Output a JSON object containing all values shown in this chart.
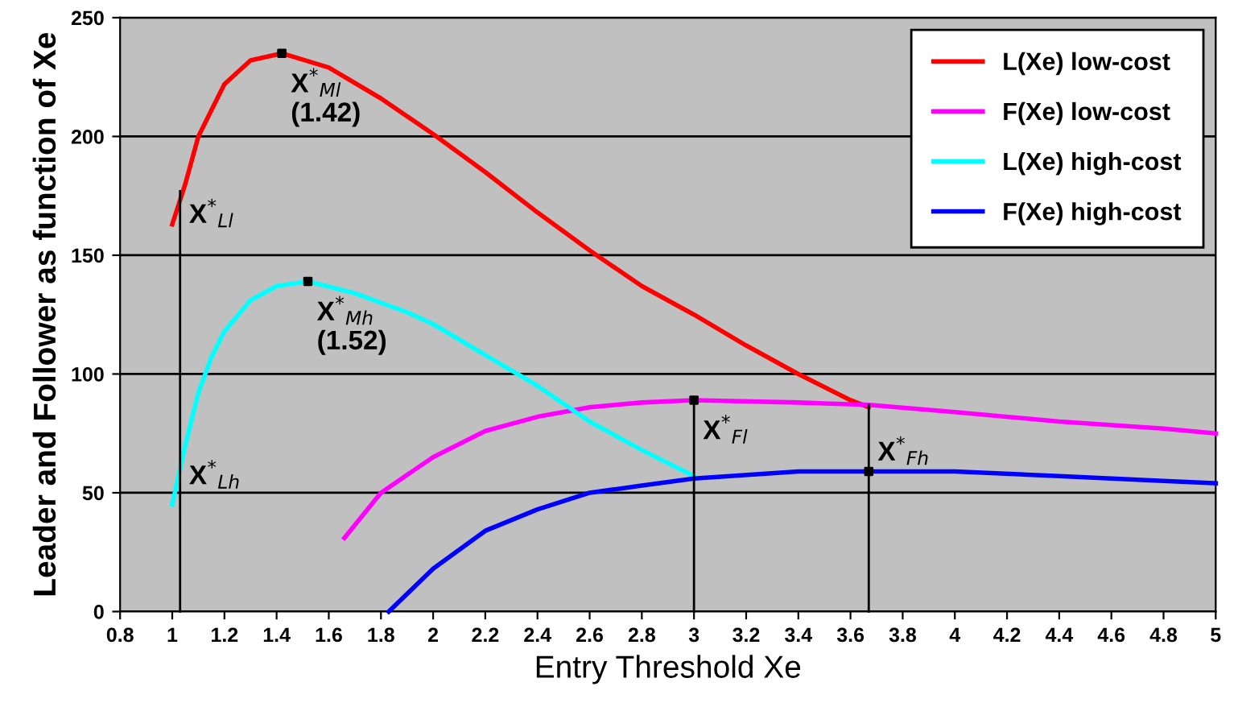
{
  "chart_data": {
    "type": "line",
    "xlabel": "Entry Threshold Xe",
    "ylabel": "Leader and Follower as function of Xe",
    "xlim": [
      0.8,
      5
    ],
    "xticks": [
      0.8,
      1,
      1.2,
      1.4,
      1.6,
      1.8,
      2,
      2.2,
      2.4,
      2.6,
      2.8,
      3,
      3.2,
      3.4,
      3.6,
      3.8,
      4,
      4.2,
      4.4,
      4.6,
      4.8,
      5
    ],
    "ylim": [
      0,
      250
    ],
    "yticks": [
      0,
      50,
      100,
      150,
      200,
      250
    ],
    "grid": "y",
    "legend": "top right",
    "marker": "none",
    "line_style": "solid",
    "series": [
      {
        "name": "L(Xe) low-cost",
        "color": "#ff0000",
        "x": [
          1.0,
          1.05,
          1.1,
          1.2,
          1.3,
          1.42,
          1.6,
          1.8,
          2.0,
          2.2,
          2.4,
          2.6,
          2.8,
          3.0,
          3.2,
          3.4,
          3.6,
          3.67
        ],
        "values": [
          163,
          180,
          200,
          222,
          232,
          235,
          229,
          216,
          201,
          185,
          168,
          152,
          137,
          125,
          112,
          100,
          89,
          86
        ]
      },
      {
        "name": "F(Xe) low-cost",
        "color": "#ff00ff",
        "x": [
          1.66,
          1.8,
          2.0,
          2.2,
          2.4,
          2.6,
          2.8,
          3.0,
          3.4,
          3.67,
          4.0,
          4.4,
          4.8,
          5.0
        ],
        "values": [
          31,
          50,
          65,
          76,
          82,
          86,
          88,
          89,
          88,
          87,
          84,
          80,
          77,
          75
        ]
      },
      {
        "name": "L(Xe) high-cost",
        "color": "#00ffff",
        "x": [
          1.0,
          1.05,
          1.1,
          1.15,
          1.2,
          1.3,
          1.4,
          1.52,
          1.7,
          1.9,
          2.0,
          2.2,
          2.4,
          2.6,
          2.8,
          3.0
        ],
        "values": [
          45,
          70,
          92,
          107,
          118,
          131,
          137,
          139,
          134,
          126,
          121,
          108,
          95,
          80,
          68,
          57
        ]
      },
      {
        "name": "F(Xe) high-cost",
        "color": "#0000ff",
        "x": [
          1.83,
          2.0,
          2.2,
          2.4,
          2.6,
          2.8,
          3.0,
          3.4,
          3.67,
          4.0,
          4.4,
          4.8,
          5.0
        ],
        "values": [
          0,
          18,
          34,
          43,
          50,
          53,
          56,
          59,
          59,
          59,
          57,
          55,
          54
        ]
      },
      {
        "color": "#000000",
        "x": [
          1.03,
          1.03
        ],
        "values": [
          0,
          177
        ]
      },
      {
        "color": "#000000",
        "x": [
          3.0,
          3.0
        ],
        "values": [
          0,
          89
        ]
      },
      {
        "color": "#000000",
        "x": [
          3.67,
          3.67
        ],
        "values": [
          0,
          87
        ]
      },
      {
        "type": "scatter",
        "marker": "square",
        "color": "#000000",
        "x": [
          1.42,
          1.52,
          3.0,
          3.67
        ],
        "values": [
          235,
          139,
          89,
          59
        ]
      }
    ],
    "annotations": [
      {
        "text": "X$^{*}$$_{Ml}$\n(1.42)",
        "x": 1.42,
        "y": 235
      },
      {
        "text": "X$^{*}$$_{Mh}$\n(1.52)",
        "x": 1.52,
        "y": 139
      },
      {
        "text": "X$^{*}$$_{Ll}$",
        "x": 1.03,
        "y": 180
      },
      {
        "text": "X$^{*}$$_{Lh}$",
        "x": 1.03,
        "y": 70
      },
      {
        "text": "X$^{*}$$_{Fl}$",
        "x": 3.0,
        "y": 89
      },
      {
        "text": "X$^{*}$$_{Fh}$",
        "x": 3.67,
        "y": 80
      }
    ]
  }
}
